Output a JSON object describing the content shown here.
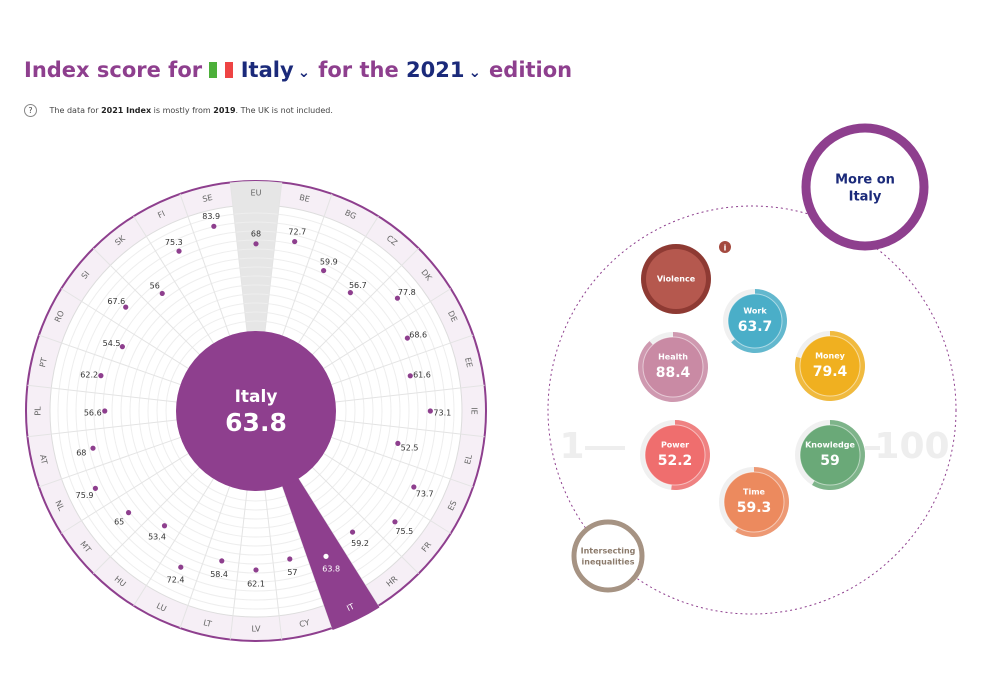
{
  "header": {
    "title_start": "Index score for",
    "country": "Italy",
    "title_middle": "for the",
    "edition": "2021",
    "title_end": "edition",
    "note": {
      "part1": "The data for",
      "bold1": "2021 Index",
      "part2": "is mostly from",
      "bold2": "2019",
      "part3": ". The UK is not included."
    }
  },
  "chart_data": [
    {
      "type": "radial",
      "categories": [
        "EU",
        "BE",
        "BG",
        "CZ",
        "DK",
        "DE",
        "EE",
        "IE",
        "EL",
        "ES",
        "FR",
        "HR",
        "IT",
        "CY",
        "LV",
        "LT",
        "LU",
        "HU",
        "MT",
        "NL",
        "AT",
        "PL",
        "PT",
        "RO",
        "SI",
        "SK",
        "FI",
        "SE"
      ],
      "values": [
        68,
        72.7,
        59.9,
        56.7,
        77.8,
        68.6,
        61.6,
        73.1,
        52.5,
        73.7,
        75.5,
        59.2,
        63.8,
        57,
        62.1,
        58.4,
        72.4,
        53.4,
        65,
        75.9,
        68,
        56.6,
        62.2,
        54.5,
        67.6,
        56,
        75.3,
        83.9
      ],
      "rlim": [
        0,
        100
      ],
      "highlight": "IT",
      "reference": "EU",
      "color": "#8e3f8e",
      "center_label": "Italy",
      "center_value": 63.8
    },
    {
      "type": "bubble",
      "range": [
        1,
        100
      ],
      "range_labels": [
        "1",
        "100"
      ],
      "categories": [
        "Violence",
        "Work",
        "Money",
        "Health",
        "Knowledge",
        "Power",
        "Time"
      ],
      "values": [
        null,
        63.7,
        79.4,
        88.4,
        59,
        52.2,
        59.3
      ],
      "colors": [
        "#b5584e",
        "#4aaec8",
        "#f0b020",
        "#c98aa4",
        "#6aa978",
        "#ef6e6e",
        "#ec8a5e"
      ],
      "more_link": "More on Italy",
      "intersecting": "Intersecting inequalities"
    }
  ]
}
